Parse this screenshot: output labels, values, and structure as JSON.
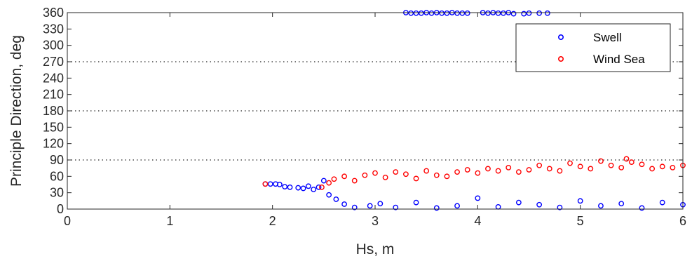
{
  "chart_data": {
    "type": "scatter",
    "xlabel": "Hs, m",
    "ylabel": "Principle Direction, deg",
    "xlim": [
      0,
      6
    ],
    "ylim": [
      0,
      360
    ],
    "xticks": [
      0,
      1,
      2,
      3,
      4,
      5,
      6
    ],
    "yticks": [
      0,
      30,
      60,
      90,
      120,
      150,
      180,
      210,
      240,
      270,
      300,
      330,
      360
    ],
    "reference_lines_y": [
      90,
      180,
      270
    ],
    "legend_position": "top-right",
    "series": [
      {
        "name": "Swell",
        "color": "#0000ff",
        "points": [
          [
            1.93,
            46
          ],
          [
            1.98,
            46
          ],
          [
            2.03,
            46
          ],
          [
            2.07,
            45
          ],
          [
            2.12,
            41
          ],
          [
            2.17,
            40
          ],
          [
            2.25,
            39
          ],
          [
            2.3,
            38
          ],
          [
            2.35,
            42
          ],
          [
            2.4,
            36
          ],
          [
            2.45,
            40
          ],
          [
            2.5,
            52
          ],
          [
            2.55,
            26
          ],
          [
            2.62,
            18
          ],
          [
            2.7,
            9
          ],
          [
            2.8,
            3
          ],
          [
            2.95,
            6
          ],
          [
            3.05,
            10
          ],
          [
            3.2,
            3
          ],
          [
            3.4,
            12
          ],
          [
            3.6,
            2
          ],
          [
            3.8,
            6
          ],
          [
            4.0,
            20
          ],
          [
            4.2,
            4
          ],
          [
            4.4,
            12
          ],
          [
            4.6,
            8
          ],
          [
            4.8,
            3
          ],
          [
            5.0,
            15
          ],
          [
            5.2,
            6
          ],
          [
            5.4,
            10
          ],
          [
            5.6,
            2
          ],
          [
            5.8,
            12
          ],
          [
            6.0,
            8
          ],
          [
            3.3,
            360
          ],
          [
            3.35,
            359
          ],
          [
            3.4,
            359
          ],
          [
            3.45,
            359
          ],
          [
            3.5,
            360
          ],
          [
            3.55,
            359
          ],
          [
            3.6,
            360
          ],
          [
            3.65,
            359
          ],
          [
            3.7,
            359
          ],
          [
            3.75,
            360
          ],
          [
            3.8,
            359
          ],
          [
            3.85,
            359
          ],
          [
            3.9,
            359
          ],
          [
            4.05,
            360
          ],
          [
            4.1,
            359
          ],
          [
            4.15,
            360
          ],
          [
            4.2,
            359
          ],
          [
            4.25,
            359
          ],
          [
            4.3,
            360
          ],
          [
            4.35,
            358
          ],
          [
            4.45,
            358
          ],
          [
            4.5,
            359
          ],
          [
            4.6,
            359
          ],
          [
            4.68,
            359
          ]
        ]
      },
      {
        "name": "Wind Sea",
        "color": "#ff0000",
        "points": [
          [
            1.93,
            46
          ],
          [
            2.48,
            40
          ],
          [
            2.55,
            48
          ],
          [
            2.6,
            55
          ],
          [
            2.7,
            60
          ],
          [
            2.8,
            52
          ],
          [
            2.9,
            62
          ],
          [
            3.0,
            66
          ],
          [
            3.1,
            58
          ],
          [
            3.2,
            68
          ],
          [
            3.3,
            64
          ],
          [
            3.4,
            56
          ],
          [
            3.5,
            70
          ],
          [
            3.6,
            62
          ],
          [
            3.7,
            60
          ],
          [
            3.8,
            68
          ],
          [
            3.9,
            72
          ],
          [
            4.0,
            66
          ],
          [
            4.1,
            74
          ],
          [
            4.2,
            70
          ],
          [
            4.3,
            76
          ],
          [
            4.4,
            68
          ],
          [
            4.5,
            72
          ],
          [
            4.6,
            80
          ],
          [
            4.7,
            74
          ],
          [
            4.8,
            70
          ],
          [
            4.9,
            84
          ],
          [
            5.0,
            78
          ],
          [
            5.1,
            74
          ],
          [
            5.2,
            88
          ],
          [
            5.3,
            80
          ],
          [
            5.4,
            76
          ],
          [
            5.45,
            92
          ],
          [
            5.5,
            86
          ],
          [
            5.6,
            82
          ],
          [
            5.7,
            74
          ],
          [
            5.8,
            78
          ],
          [
            5.9,
            76
          ],
          [
            6.0,
            80
          ]
        ]
      }
    ]
  }
}
